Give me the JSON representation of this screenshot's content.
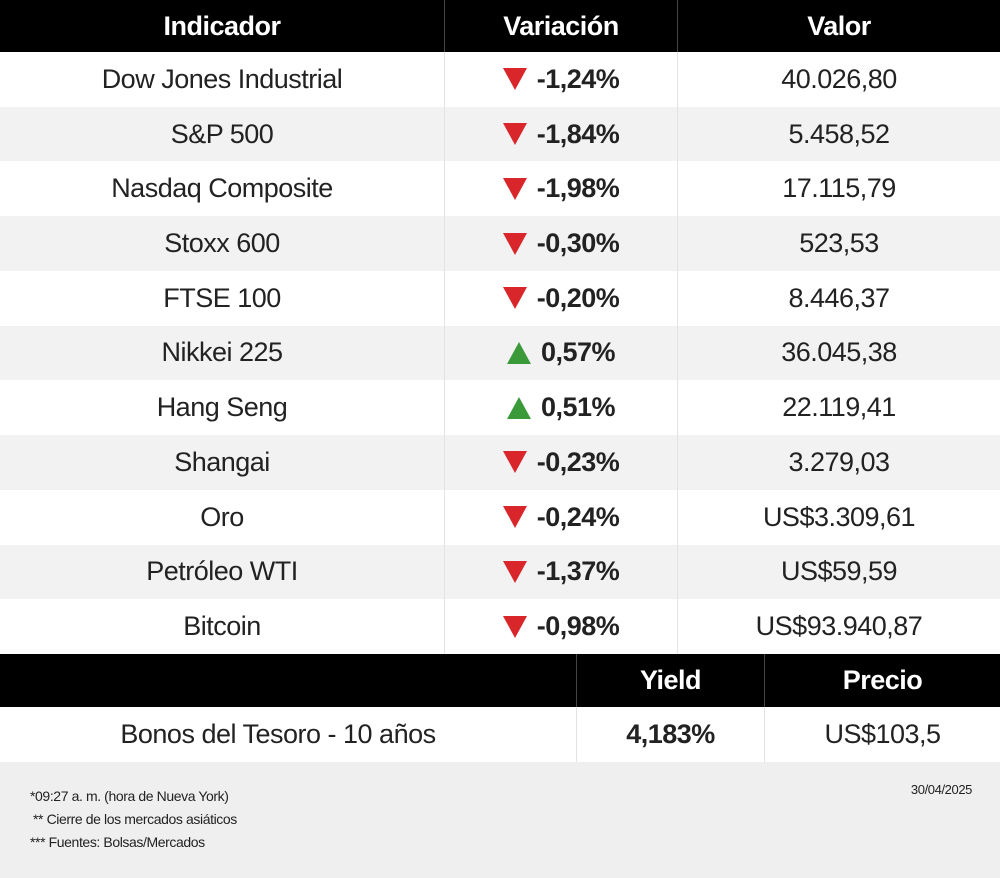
{
  "table": {
    "header": [
      "Indicador",
      "Variación",
      "Valor"
    ],
    "rows": [
      {
        "name": "Dow Jones Industrial",
        "trend": "down",
        "change": "-1,24%",
        "value": "40.026,80"
      },
      {
        "name": "S&P 500",
        "trend": "down",
        "change": "-1,84%",
        "value": "5.458,52"
      },
      {
        "name": "Nasdaq Composite",
        "trend": "down",
        "change": "-1,98%",
        "value": "17.115,79"
      },
      {
        "name": "Stoxx 600",
        "trend": "down",
        "change": "-0,30%",
        "value": "523,53"
      },
      {
        "name": "FTSE 100",
        "trend": "down",
        "change": "-0,20%",
        "value": "8.446,37"
      },
      {
        "name": "Nikkei 225",
        "trend": "up",
        "change": "0,57%",
        "value": "36.045,38"
      },
      {
        "name": "Hang Seng",
        "trend": "up",
        "change": "0,51%",
        "value": "22.119,41"
      },
      {
        "name": "Shangai",
        "trend": "down",
        "change": "-0,23%",
        "value": "3.279,03"
      },
      {
        "name": "Oro",
        "trend": "down",
        "change": "-0,24%",
        "value": "US$3.309,61"
      },
      {
        "name": "Petróleo WTI",
        "trend": "down",
        "change": "-1,37%",
        "value": "US$59,59"
      },
      {
        "name": "Bitcoin",
        "trend": "down",
        "change": "-0,98%",
        "value": "US$93.940,87"
      }
    ]
  },
  "bonds": {
    "header": [
      "Yield",
      "Precio"
    ],
    "name": "Bonos del Tesoro - 10 años",
    "yield": "4,183%",
    "price": "US$103,5"
  },
  "footer": {
    "notes": [
      "*09:27 a. m. (hora de Nueva York)",
      "** Cierre de los mercados asiáticos",
      "*** Fuentes: Bolsas/Mercados"
    ],
    "date": "30/04/2025"
  }
}
